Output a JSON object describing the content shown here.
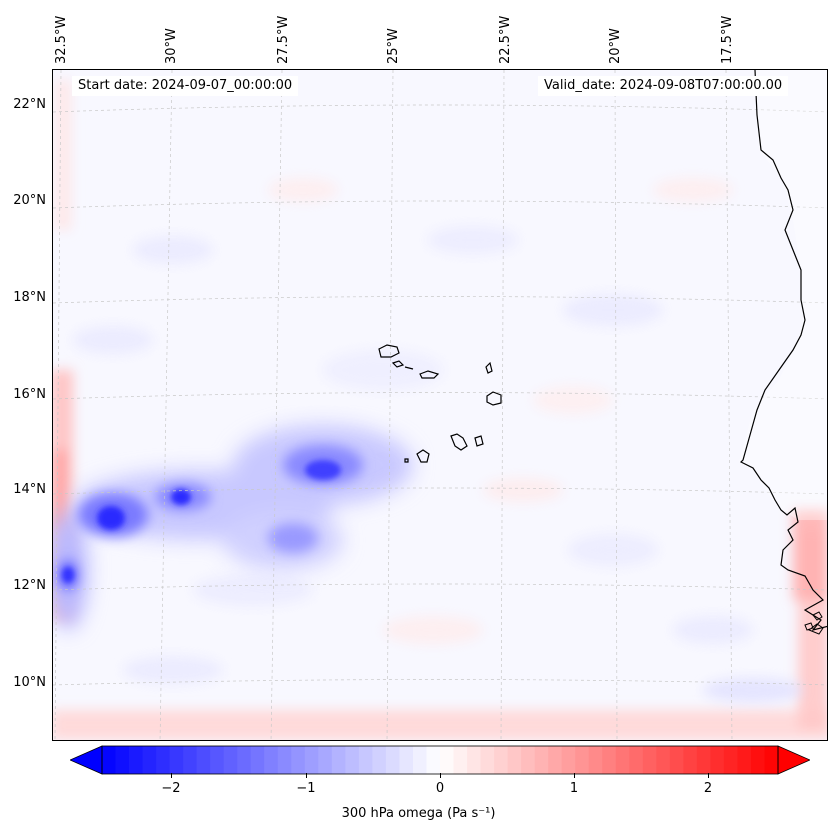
{
  "map": {
    "start_date": "Start date: 2024-09-07_00:00:00",
    "valid_date": "Valid_date: 2024-09-08T07:00:00.00",
    "lon_labels": [
      "32.5°W",
      "30°W",
      "27.5°W",
      "25°W",
      "22.5°W",
      "20°W",
      "17.5°W"
    ],
    "lat_labels": [
      "22°N",
      "20°N",
      "18°N",
      "16°N",
      "14°N",
      "12°N",
      "10°N"
    ],
    "land_color": "#ffffff",
    "ocean_color": "#f8f8ff",
    "coastline_color": "#000000",
    "gridline_color": "#c8c8c8"
  },
  "colorbar": {
    "ticks": [
      "−2",
      "−1",
      "0",
      "1",
      "2"
    ],
    "tick_values": [
      -2,
      -1,
      0,
      1,
      2
    ],
    "range": [
      -2.5,
      2.5
    ],
    "label": "300 hPa omega (Pa s⁻¹)",
    "cmap": "bwr",
    "low_color": "#0000ff",
    "mid_color": "#ffffff",
    "high_color": "#ff0000",
    "extend": "both"
  }
}
